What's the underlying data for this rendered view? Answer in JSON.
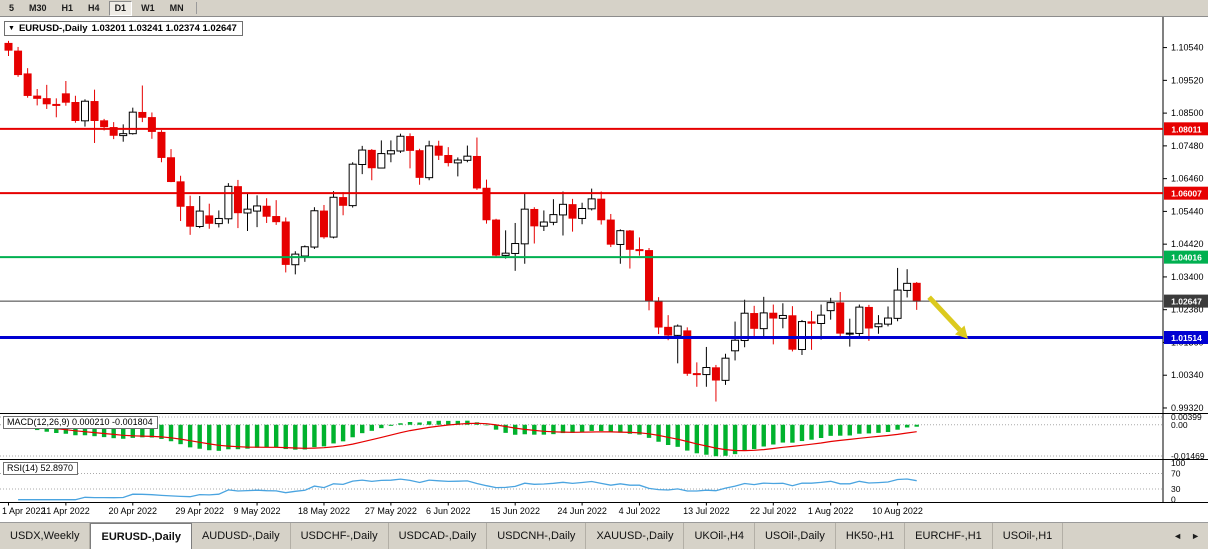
{
  "toolbar": {
    "timeframes": [
      {
        "label": "5",
        "pressed": false
      },
      {
        "label": "M30",
        "pressed": false
      },
      {
        "label": "H1",
        "pressed": false
      },
      {
        "label": "H4",
        "pressed": false
      },
      {
        "label": "D1",
        "pressed": true
      },
      {
        "label": "W1",
        "pressed": false
      },
      {
        "label": "MN",
        "pressed": false
      }
    ]
  },
  "chart": {
    "dropdown_icon": "▼",
    "title_symbol": "EURUSD-,Daily",
    "title_ohlc": "1.03201 1.03241 1.02374 1.02647",
    "price_axis_ticks": [
      "1.10540",
      "1.09520",
      "1.08500",
      "1.07480",
      "1.06460",
      "1.05440",
      "1.04420",
      "1.03400",
      "1.02380",
      "1.01360",
      "1.00340",
      "0.99320"
    ],
    "hlines": [
      {
        "label": "1.08011",
        "value": 1.08011,
        "color": "#e60000",
        "width": 2
      },
      {
        "label": "1.06007",
        "value": 1.06007,
        "color": "#e60000",
        "width": 2
      },
      {
        "label": "1.04016",
        "value": 1.04016,
        "color": "#00b050",
        "width": 2
      },
      {
        "label": "1.01514",
        "value": 1.01514,
        "color": "#0000d2",
        "width": 3
      }
    ],
    "current_price": {
      "label": "1.02647",
      "value": 1.02647,
      "color": "#3b3b3b"
    },
    "arrow": {
      "color": "#dcca1e",
      "from_index": 96.3,
      "from_price": 1.0277,
      "to_index": 99.5,
      "to_price": 1.0175
    }
  },
  "macd": {
    "label": "MACD(12,26,9) 0.000210 -0.001804",
    "axis_max_label": "0.00399",
    "axis_zero_label": "0.00",
    "axis_min_label": "-0.01469",
    "max": 0.00399,
    "min": -0.01469,
    "histogram_color": "#00b22d",
    "signal_color": "#e60000"
  },
  "rsi": {
    "label": "RSI(14) 52.8970",
    "axis_labels": [
      "100",
      "70",
      "30",
      "0"
    ],
    "levels": [
      70,
      30
    ],
    "line_color": "#4aa4e0"
  },
  "date_axis": [
    {
      "label": "1 Apr 2022",
      "index": 0
    },
    {
      "label": "11 Apr 2022",
      "index": 6
    },
    {
      "label": "20 Apr 2022",
      "index": 13
    },
    {
      "label": "29 Apr 2022",
      "index": 20
    },
    {
      "label": "9 May 2022",
      "index": 26
    },
    {
      "label": "18 May 2022",
      "index": 33
    },
    {
      "label": "27 May 2022",
      "index": 40
    },
    {
      "label": "6 Jun 2022",
      "index": 46
    },
    {
      "label": "15 Jun 2022",
      "index": 53
    },
    {
      "label": "24 Jun 2022",
      "index": 60
    },
    {
      "label": "4 Jul 2022",
      "index": 66
    },
    {
      "label": "13 Jul 2022",
      "index": 73
    },
    {
      "label": "22 Jul 2022",
      "index": 80
    },
    {
      "label": "1 Aug 2022",
      "index": 86
    },
    {
      "label": "10 Aug 2022",
      "index": 93
    }
  ],
  "tabbar": {
    "scroll_left": "◄",
    "scroll_right": "►",
    "tabs": [
      {
        "label": "USDX,Weekly",
        "active": false
      },
      {
        "label": "EURUSD-,Daily",
        "active": true
      },
      {
        "label": "AUDUSD-,Daily",
        "active": false
      },
      {
        "label": "USDCHF-,Daily",
        "active": false
      },
      {
        "label": "USDCAD-,Daily",
        "active": false
      },
      {
        "label": "USDCNH-,Daily",
        "active": false
      },
      {
        "label": "XAUUSD-,Daily",
        "active": false
      },
      {
        "label": "UKOil-,H4",
        "active": false
      },
      {
        "label": "USOil-,Daily",
        "active": false
      },
      {
        "label": "HK50-,H1",
        "active": false
      },
      {
        "label": "EURCHF-,H1",
        "active": false
      },
      {
        "label": "USOil-,H1",
        "active": false
      }
    ]
  },
  "chart_data": {
    "type": "candlestick",
    "symbol": "EURUSD-",
    "timeframe": "Daily",
    "ohlc_display": {
      "open": "1.03201",
      "high": "1.03241",
      "low": "1.02374",
      "close": "1.02647"
    },
    "up_color": "#ffffff",
    "down_color": "#e60000",
    "outline_color": "#000000",
    "y_range_estimate": [
      0.9918,
      1.1143
    ],
    "indicators": [
      {
        "name": "MACD",
        "params": [
          12,
          26,
          9
        ],
        "display_values": [
          "0.000210",
          "-0.001804"
        ]
      },
      {
        "name": "RSI",
        "params": [
          14
        ],
        "display_value": "52.8970"
      }
    ],
    "candles": [
      [
        1.1067,
        1.1075,
        1.1028,
        1.1046
      ],
      [
        1.1043,
        1.1056,
        1.0963,
        1.097
      ],
      [
        1.0972,
        1.099,
        1.0898,
        1.0905
      ],
      [
        1.0903,
        1.0925,
        1.0874,
        1.0896
      ],
      [
        1.0895,
        1.0938,
        1.0863,
        1.0879
      ],
      [
        1.0877,
        1.0896,
        1.0837,
        1.0876
      ],
      [
        1.091,
        1.095,
        1.0873,
        1.0884
      ],
      [
        1.0883,
        1.0904,
        1.082,
        1.0827
      ],
      [
        1.0826,
        1.0893,
        1.0808,
        1.0887
      ],
      [
        1.0886,
        1.0923,
        1.0757,
        1.0827
      ],
      [
        1.0826,
        1.0832,
        1.0796,
        1.0808
      ],
      [
        1.0805,
        1.0822,
        1.0769,
        1.0781
      ],
      [
        1.078,
        1.0815,
        1.0761,
        1.0786
      ],
      [
        1.0786,
        1.0867,
        1.0783,
        1.0853
      ],
      [
        1.0852,
        1.0936,
        1.0822,
        1.0837
      ],
      [
        1.0836,
        1.0852,
        1.077,
        1.0793
      ],
      [
        1.079,
        1.0797,
        1.0697,
        1.0712
      ],
      [
        1.0711,
        1.0738,
        1.0635,
        1.0637
      ],
      [
        1.0636,
        1.0655,
        1.0514,
        1.056
      ],
      [
        1.0559,
        1.0593,
        1.0471,
        1.0498
      ],
      [
        1.0497,
        1.0592,
        1.0492,
        1.0545
      ],
      [
        1.053,
        1.0568,
        1.049,
        1.0507
      ],
      [
        1.0506,
        1.0547,
        1.0494,
        1.0522
      ],
      [
        1.0521,
        1.0632,
        1.0506,
        1.0622
      ],
      [
        1.0621,
        1.0642,
        1.0492,
        1.054
      ],
      [
        1.0539,
        1.0599,
        1.0483,
        1.0551
      ],
      [
        1.0545,
        1.0594,
        1.0495,
        1.0561
      ],
      [
        1.056,
        1.0585,
        1.0508,
        1.0529
      ],
      [
        1.0528,
        1.0579,
        1.0502,
        1.0512
      ],
      [
        1.0511,
        1.0525,
        1.0354,
        1.0379
      ],
      [
        1.0378,
        1.042,
        1.0348,
        1.0411
      ],
      [
        1.0405,
        1.0438,
        1.0387,
        1.0434
      ],
      [
        1.0433,
        1.0557,
        1.0427,
        1.0546
      ],
      [
        1.0545,
        1.0564,
        1.0459,
        1.0465
      ],
      [
        1.0464,
        1.0607,
        1.046,
        1.0588
      ],
      [
        1.0587,
        1.0604,
        1.0532,
        1.0563
      ],
      [
        1.0562,
        1.0697,
        1.0556,
        1.0691
      ],
      [
        1.069,
        1.0748,
        1.066,
        1.0735
      ],
      [
        1.0734,
        1.0738,
        1.0641,
        1.068
      ],
      [
        1.0679,
        1.0765,
        1.0678,
        1.0724
      ],
      [
        1.0723,
        1.0765,
        1.0697,
        1.0733
      ],
      [
        1.0732,
        1.0786,
        1.0726,
        1.0778
      ],
      [
        1.0777,
        1.0787,
        1.0678,
        1.0734
      ],
      [
        1.0733,
        1.0739,
        1.0627,
        1.065
      ],
      [
        1.0649,
        1.0764,
        1.0641,
        1.0748
      ],
      [
        1.0747,
        1.0764,
        1.0704,
        1.0719
      ],
      [
        1.0718,
        1.0744,
        1.0684,
        1.0696
      ],
      [
        1.0695,
        1.0712,
        1.0653,
        1.0704
      ],
      [
        1.0703,
        1.0749,
        1.0697,
        1.0716
      ],
      [
        1.0715,
        1.0774,
        1.0611,
        1.0617
      ],
      [
        1.0616,
        1.0643,
        1.0506,
        1.0518
      ],
      [
        1.0517,
        1.0521,
        1.0399,
        1.0408
      ],
      [
        1.0407,
        1.0485,
        1.0397,
        1.0414
      ],
      [
        1.0413,
        1.0508,
        1.0359,
        1.0444
      ],
      [
        1.0443,
        1.0601,
        1.0381,
        1.0551
      ],
      [
        1.055,
        1.0557,
        1.0444,
        1.0499
      ],
      [
        1.0498,
        1.0547,
        1.0483,
        1.0511
      ],
      [
        1.051,
        1.0582,
        1.0501,
        1.0534
      ],
      [
        1.0533,
        1.0606,
        1.0469,
        1.0566
      ],
      [
        1.0565,
        1.0583,
        1.0481,
        1.0523
      ],
      [
        1.0522,
        1.0571,
        1.0504,
        1.0553
      ],
      [
        1.0552,
        1.0615,
        1.0547,
        1.0583
      ],
      [
        1.0582,
        1.0606,
        1.0503,
        1.0518
      ],
      [
        1.0517,
        1.0536,
        1.0433,
        1.0442
      ],
      [
        1.0441,
        1.0488,
        1.0381,
        1.0484
      ],
      [
        1.0483,
        1.0486,
        1.0366,
        1.0426
      ],
      [
        1.0425,
        1.0463,
        1.0406,
        1.0423
      ],
      [
        1.0422,
        1.043,
        1.0236,
        1.0265
      ],
      [
        1.0264,
        1.0277,
        1.0162,
        1.0184
      ],
      [
        1.0183,
        1.0221,
        1.0143,
        1.0159
      ],
      [
        1.0158,
        1.0192,
        1.0071,
        1.0187
      ],
      [
        1.0172,
        1.0183,
        1.0032,
        1.004
      ],
      [
        1.0039,
        1.0074,
        0.9998,
        1.0037
      ],
      [
        1.0036,
        1.0122,
        0.9998,
        1.0058
      ],
      [
        1.0057,
        1.0066,
        0.9952,
        1.0019
      ],
      [
        1.0018,
        1.0101,
        1.0004,
        1.0087
      ],
      [
        1.011,
        1.0201,
        1.008,
        1.0143
      ],
      [
        1.0142,
        1.0269,
        1.0121,
        1.0227
      ],
      [
        1.0226,
        1.025,
        1.0155,
        1.018
      ],
      [
        1.0179,
        1.0278,
        1.0152,
        1.0228
      ],
      [
        1.0227,
        1.0254,
        1.013,
        1.0212
      ],
      [
        1.0211,
        1.0258,
        1.018,
        1.022
      ],
      [
        1.0219,
        1.0249,
        1.0108,
        1.0115
      ],
      [
        1.0114,
        1.0206,
        1.0097,
        1.0201
      ],
      [
        1.02,
        1.0234,
        1.0113,
        1.0196
      ],
      [
        1.0195,
        1.0254,
        1.0145,
        1.0221
      ],
      [
        1.0235,
        1.0275,
        1.0207,
        1.026
      ],
      [
        1.0259,
        1.0293,
        1.0155,
        1.0165
      ],
      [
        1.0164,
        1.021,
        1.0123,
        1.0165
      ],
      [
        1.0164,
        1.0254,
        1.0151,
        1.0246
      ],
      [
        1.0245,
        1.0253,
        1.0141,
        1.0181
      ],
      [
        1.0185,
        1.0221,
        1.0163,
        1.0194
      ],
      [
        1.0193,
        1.0248,
        1.0186,
        1.0212
      ],
      [
        1.0211,
        1.0368,
        1.0202,
        1.0299
      ],
      [
        1.0298,
        1.0364,
        1.0276,
        1.032
      ],
      [
        1.03201,
        1.03241,
        1.02374,
        1.02647
      ]
    ]
  }
}
